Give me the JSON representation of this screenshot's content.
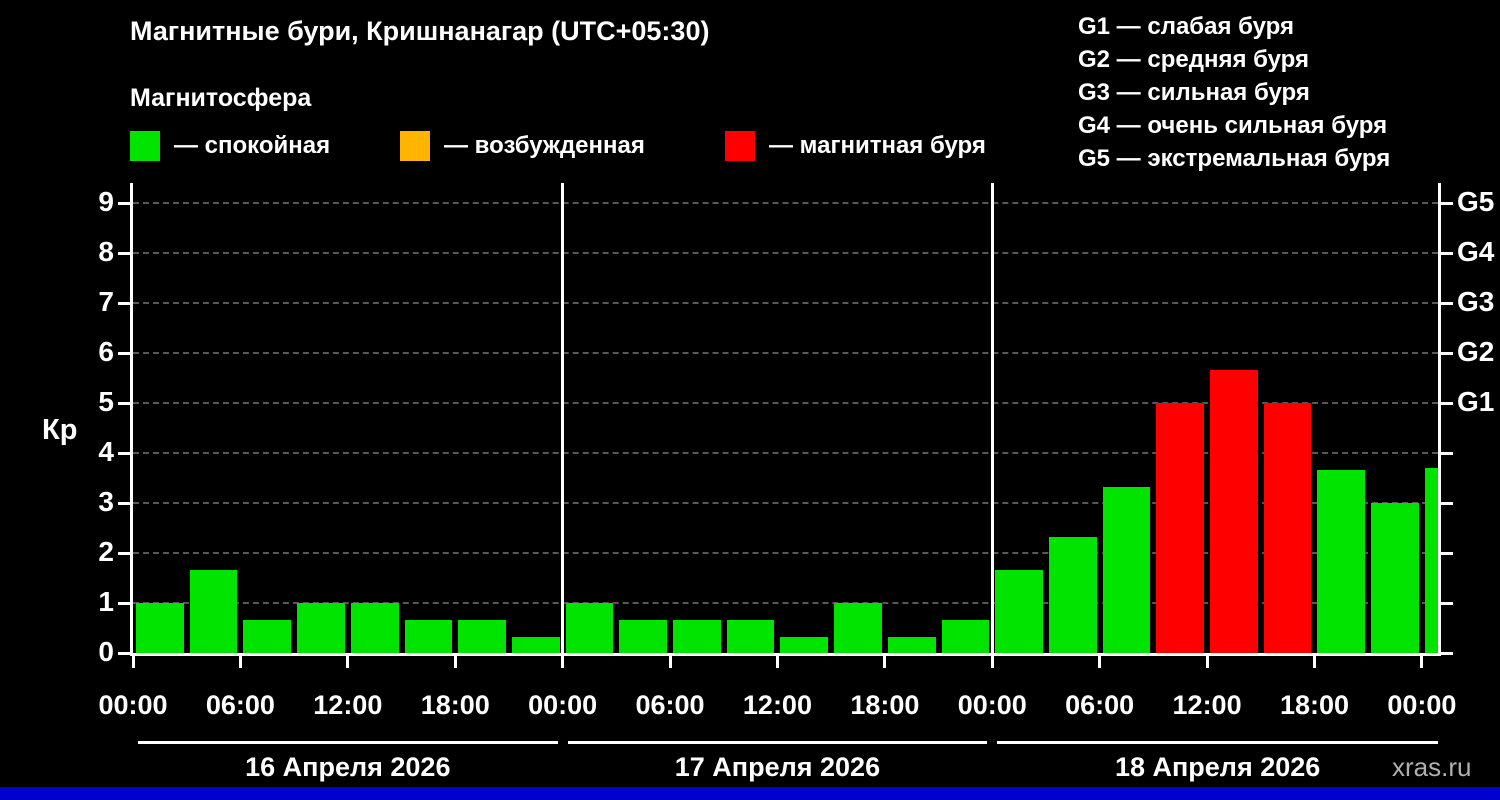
{
  "header": {
    "title": "Магнитные бури, Кришнанагар (UTC+05:30)",
    "subtitle": "Магнитосфера",
    "legend": [
      {
        "name": "quiet",
        "color": "#00e400",
        "label": "— спокойная"
      },
      {
        "name": "excited",
        "color": "#ffb400",
        "label": "— возбужденная"
      },
      {
        "name": "storm",
        "color": "#ff0000",
        "label": "— магнитная буря"
      }
    ],
    "g_scale_legend": [
      {
        "code": "G1",
        "label": "G1 — слабая буря"
      },
      {
        "code": "G2",
        "label": "G2 — средняя буря"
      },
      {
        "code": "G3",
        "label": "G3 — сильная буря"
      },
      {
        "code": "G4",
        "label": "G4 — очень сильная буря"
      },
      {
        "code": "G5",
        "label": "G5 — экстремальная буря"
      }
    ]
  },
  "chart_data": {
    "type": "bar",
    "title": "Магнитные бури, Кришнанагар (UTC+05:30)",
    "ylabel": "Кр",
    "ylim": [
      0,
      9.4
    ],
    "yticks": [
      0,
      1,
      2,
      3,
      4,
      5,
      6,
      7,
      8,
      9
    ],
    "right_axis_labels": [
      {
        "value": 5,
        "label": "G1"
      },
      {
        "value": 6,
        "label": "G2"
      },
      {
        "value": 7,
        "label": "G3"
      },
      {
        "value": 8,
        "label": "G4"
      },
      {
        "value": 9,
        "label": "G5"
      }
    ],
    "x_tick_labels": [
      "00:00",
      "06:00",
      "12:00",
      "18:00",
      "00:00",
      "06:00",
      "12:00",
      "18:00",
      "00:00",
      "06:00",
      "12:00",
      "18:00",
      "00:00"
    ],
    "bar_interval_hours": 3,
    "days": [
      {
        "date": "16 Апреля 2026",
        "values": [
          1,
          1.67,
          0.67,
          1,
          1,
          0.67,
          0.67,
          0.33
        ]
      },
      {
        "date": "17 Апреля 2026",
        "values": [
          1,
          0.67,
          0.67,
          0.67,
          0.33,
          1,
          0.33,
          0.67
        ]
      },
      {
        "date": "18 Апреля 2026",
        "values": [
          1.67,
          2.33,
          3.33,
          5,
          5.67,
          5,
          3.67,
          3
        ]
      }
    ],
    "next_partial_value": 3.7,
    "color_rules": {
      "quiet_below": 4,
      "storm_at_least": 5
    },
    "colors": {
      "quiet": "#00e400",
      "excited": "#ffb400",
      "storm": "#ff0000"
    },
    "grid": true,
    "legend_position": "top"
  },
  "footer": {
    "watermark": "xras.ru",
    "strip_color": "#0000cd"
  }
}
